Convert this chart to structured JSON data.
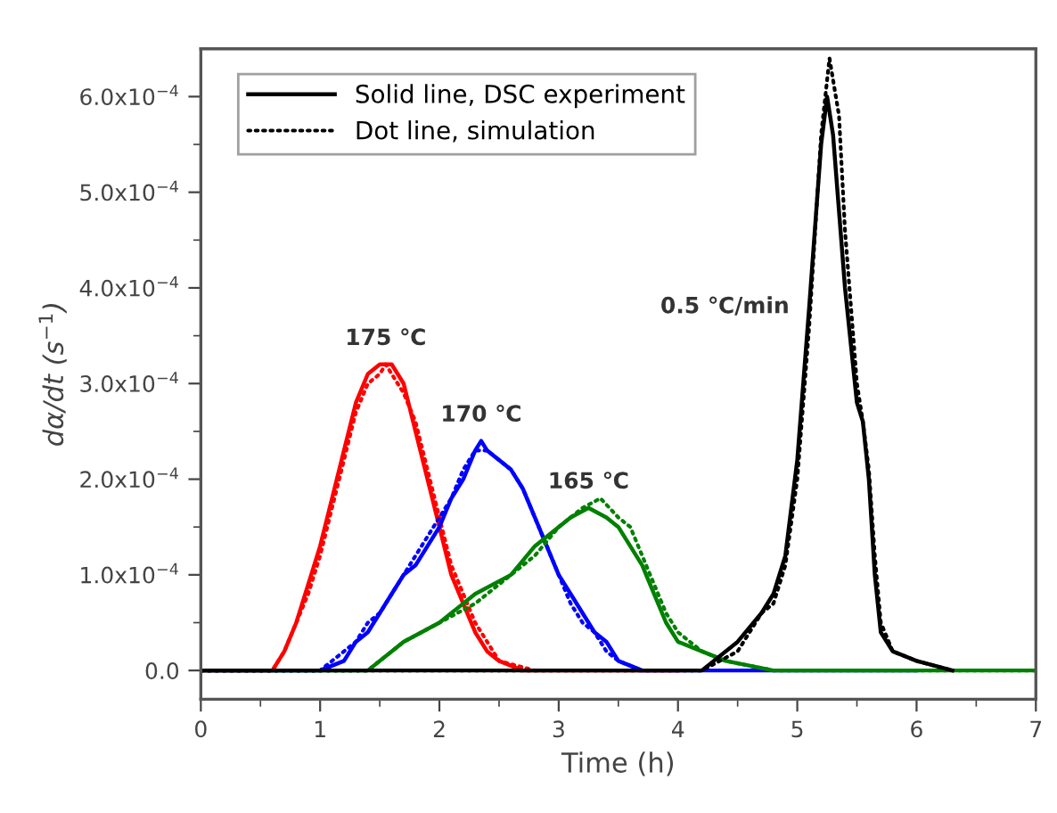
{
  "chart_data": {
    "type": "line",
    "xlabel": "Time (h)",
    "ylabel": "dα/dt (s$^{−1}$)",
    "xlim": [
      0,
      7
    ],
    "xticks": [
      0,
      1,
      2,
      3,
      4,
      5,
      6,
      7
    ],
    "ylim": [
      -3e-05,
      0.00065
    ],
    "yticks": [
      {
        "value": 0,
        "label": "0.0"
      },
      {
        "value": 0.0001,
        "label": "1.0x10$^{−4}$"
      },
      {
        "value": 0.0002,
        "label": "2.0x10$^{−4}$"
      },
      {
        "value": 0.0003,
        "label": "3.0x10$^{−4}$"
      },
      {
        "value": 0.0004,
        "label": "4.0x10$^{−4}$"
      },
      {
        "value": 0.0005,
        "label": "5.0x10$^{−4}$"
      },
      {
        "value": 0.0006,
        "label": "6.0x10$^{−4}$"
      }
    ],
    "grid": false,
    "legend": "top left",
    "series": [
      {
        "color": "#ff0000",
        "line_style": "solid",
        "x": [
          0,
          0.6,
          0.7,
          0.8,
          0.9,
          1.0,
          1.1,
          1.2,
          1.3,
          1.4,
          1.5,
          1.55,
          1.6,
          1.7,
          1.8,
          1.9,
          2.0,
          2.1,
          2.2,
          2.3,
          2.4,
          2.5,
          2.7,
          4.0
        ],
        "values": [
          0,
          0,
          2e-05,
          5e-05,
          9e-05,
          0.00013,
          0.00018,
          0.00023,
          0.00028,
          0.00031,
          0.00032,
          0.00032,
          0.00032,
          0.0003,
          0.00025,
          0.0002,
          0.00015,
          0.0001,
          7e-05,
          4e-05,
          2e-05,
          1e-05,
          0,
          0
        ]
      },
      {
        "color": "#ff0000",
        "line_style": "dotted",
        "x": [
          0,
          0.6,
          0.7,
          0.8,
          0.9,
          1.0,
          1.1,
          1.2,
          1.3,
          1.4,
          1.5,
          1.55,
          1.6,
          1.7,
          1.8,
          1.9,
          2.0,
          2.1,
          2.2,
          2.3,
          2.4,
          2.5,
          2.8
        ],
        "values": [
          0,
          0,
          2e-05,
          5e-05,
          8e-05,
          0.00012,
          0.00017,
          0.00022,
          0.00027,
          0.0003,
          0.00031,
          0.00032,
          0.00031,
          0.00029,
          0.00026,
          0.00021,
          0.00016,
          0.00011,
          8e-05,
          5e-05,
          3e-05,
          1e-05,
          0
        ]
      },
      {
        "color": "#0000ff",
        "line_style": "solid",
        "x": [
          0,
          1.0,
          1.2,
          1.3,
          1.4,
          1.5,
          1.6,
          1.7,
          1.8,
          1.9,
          2.0,
          2.1,
          2.2,
          2.3,
          2.35,
          2.4,
          2.5,
          2.6,
          2.7,
          2.8,
          2.9,
          3.0,
          3.1,
          3.2,
          3.3,
          3.4,
          3.5,
          3.7,
          6.0
        ],
        "values": [
          0,
          0,
          1e-05,
          3e-05,
          4e-05,
          6e-05,
          8e-05,
          0.0001,
          0.00011,
          0.00013,
          0.00015,
          0.00018,
          0.0002,
          0.00023,
          0.00024,
          0.00023,
          0.00022,
          0.00021,
          0.00019,
          0.00016,
          0.00013,
          0.0001,
          8e-05,
          6e-05,
          4e-05,
          3e-05,
          1e-05,
          0,
          0
        ]
      },
      {
        "color": "#0000ff",
        "line_style": "dotted",
        "x": [
          0,
          1.0,
          1.2,
          1.3,
          1.4,
          1.5,
          1.6,
          1.7,
          1.8,
          1.9,
          2.0,
          2.1,
          2.2,
          2.3,
          2.35,
          2.4,
          2.5,
          2.6,
          2.7,
          2.8,
          2.9,
          3.0,
          3.1,
          3.2,
          3.3,
          3.4,
          3.5,
          3.7
        ],
        "values": [
          0,
          0,
          2e-05,
          3e-05,
          5e-05,
          6e-05,
          8e-05,
          0.0001,
          0.00012,
          0.00014,
          0.00016,
          0.00018,
          0.00021,
          0.00023,
          0.00023,
          0.00023,
          0.00022,
          0.00021,
          0.00019,
          0.00016,
          0.00013,
          0.0001,
          7e-05,
          5e-05,
          4e-05,
          2e-05,
          1e-05,
          0
        ]
      },
      {
        "color": "#008000",
        "line_style": "solid",
        "x": [
          0,
          1.4,
          1.7,
          2.0,
          2.3,
          2.6,
          2.8,
          3.0,
          3.1,
          3.25,
          3.4,
          3.5,
          3.6,
          3.7,
          3.8,
          3.9,
          4.0,
          4.2,
          4.4,
          4.8,
          7.0
        ],
        "values": [
          0,
          0,
          3e-05,
          5e-05,
          8e-05,
          0.0001,
          0.00013,
          0.00015,
          0.00016,
          0.00017,
          0.00016,
          0.00015,
          0.00013,
          0.00011,
          8e-05,
          5e-05,
          3e-05,
          2e-05,
          1e-05,
          0,
          0
        ]
      },
      {
        "color": "#008000",
        "line_style": "dotted",
        "x": [
          0,
          1.4,
          1.7,
          2.0,
          2.3,
          2.6,
          2.8,
          3.0,
          3.1,
          3.2,
          3.35,
          3.5,
          3.6,
          3.7,
          3.8,
          3.9,
          4.0,
          4.2,
          4.4,
          4.8,
          7.0
        ],
        "values": [
          0,
          0,
          3e-05,
          5e-05,
          7e-05,
          0.0001,
          0.00012,
          0.00015,
          0.00016,
          0.00017,
          0.00018,
          0.00016,
          0.00015,
          0.00012,
          9e-05,
          6e-05,
          4e-05,
          2e-05,
          1e-05,
          0,
          0
        ]
      },
      {
        "name": "Solid line, DSC experiment",
        "color": "#000000",
        "line_style": "solid",
        "x": [
          0,
          4.2,
          4.5,
          4.7,
          4.8,
          4.9,
          5.0,
          5.1,
          5.2,
          5.25,
          5.3,
          5.4,
          5.5,
          5.55,
          5.6,
          5.65,
          5.7,
          5.8,
          6.0,
          6.3
        ],
        "values": [
          0,
          0,
          3e-05,
          6e-05,
          8e-05,
          0.00012,
          0.00022,
          0.00038,
          0.00055,
          0.0006,
          0.00056,
          0.0004,
          0.00028,
          0.00026,
          0.0002,
          0.0001,
          4e-05,
          2e-05,
          1e-05,
          0
        ]
      },
      {
        "name": "Dot line, simulation",
        "color": "#000000",
        "line_style": "dotted",
        "x": [
          0,
          4.2,
          4.5,
          4.7,
          4.8,
          4.9,
          5.0,
          5.1,
          5.2,
          5.27,
          5.35,
          5.4,
          5.5,
          5.55,
          5.6,
          5.65,
          5.7,
          5.8,
          6.0,
          6.3
        ],
        "values": [
          0,
          0,
          2e-05,
          6e-05,
          7e-05,
          0.00011,
          0.0002,
          0.00036,
          0.00056,
          0.00064,
          0.00058,
          0.00046,
          0.0003,
          0.00026,
          0.00021,
          0.00012,
          5e-05,
          2e-05,
          1e-05,
          0
        ]
      }
    ],
    "annotations": [
      {
        "text": "175 ℃",
        "x": 1.55,
        "y": 0.00032
      },
      {
        "text": "170 ℃",
        "x": 2.35,
        "y": 0.00024
      },
      {
        "text": "165 ℃",
        "x": 3.25,
        "y": 0.00017
      },
      {
        "text": "0.5 ℃/min",
        "x": 5.1,
        "y": 0.00038
      }
    ]
  }
}
